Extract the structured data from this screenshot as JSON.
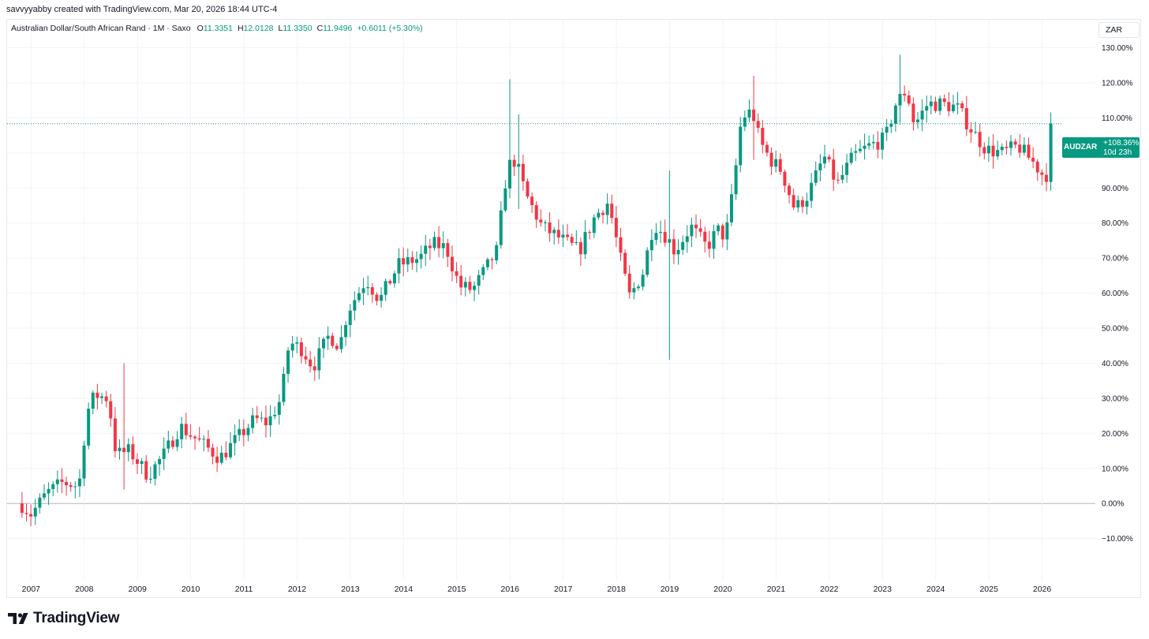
{
  "header": {
    "attribution": "savvyyabby created with TradingView.com, Mar 20, 2026 18:44 UTC-4"
  },
  "legend": {
    "symbol": "Australian Dollar/South African Rand · 1M · Saxo",
    "open_label": "O",
    "open": "11.3351",
    "high_label": "H",
    "high": "12.0128",
    "low_label": "L",
    "low": "11.3350",
    "close_label": "C",
    "close": "11.9496",
    "change": "+0.6011 (+5.30%)"
  },
  "currency_button": "ZAR",
  "price_tag": {
    "symbol": "AUDZAR",
    "percent": "+108.36%",
    "countdown": "10d 23h"
  },
  "brand": {
    "name": "TradingView"
  },
  "colors": {
    "up": "#089981",
    "down": "#f23645",
    "grid": "#f0f3fa",
    "zero_line": "#b2b5be",
    "price_line": "#089981"
  },
  "chart_data": {
    "type": "candlestick",
    "scale": "percent",
    "ylim": [
      -22,
      138
    ],
    "xlim": [
      2006.55,
      2027.0
    ],
    "y_ticks": [
      130,
      120,
      110,
      100,
      90,
      80,
      70,
      60,
      50,
      40,
      30,
      20,
      10,
      0,
      -10
    ],
    "y_tick_labels": [
      "130.00%",
      "120.00%",
      "110.00%",
      "100.00%",
      "90.00%",
      "80.00%",
      "70.00%",
      "60.00%",
      "50.00%",
      "40.00%",
      "30.00%",
      "20.00%",
      "10.00%",
      "0.00%",
      "−10.00%"
    ],
    "x_ticks": [
      2007,
      2008,
      2009,
      2010,
      2011,
      2012,
      2013,
      2014,
      2015,
      2016,
      2017,
      2018,
      2019,
      2020,
      2021,
      2022,
      2023,
      2024,
      2025,
      2026
    ],
    "x_tick_labels": [
      "2007",
      "2008",
      "2009",
      "2010",
      "2011",
      "2012",
      "2013",
      "2014",
      "2015",
      "2016",
      "2017",
      "2018",
      "2019",
      "2020",
      "2021",
      "2022",
      "2023",
      "2024",
      "2025",
      "2026"
    ],
    "last_value": 108.36,
    "grid": true,
    "anchors": [
      {
        "x": 2006.8,
        "y": 0
      },
      {
        "x": 2007.0,
        "y": -3
      },
      {
        "x": 2007.3,
        "y": 3
      },
      {
        "x": 2007.6,
        "y": 6
      },
      {
        "x": 2007.9,
        "y": 5
      },
      {
        "x": 2008.05,
        "y": 26
      },
      {
        "x": 2008.2,
        "y": 31
      },
      {
        "x": 2008.45,
        "y": 30
      },
      {
        "x": 2008.6,
        "y": 14
      },
      {
        "x": 2008.85,
        "y": 15
      },
      {
        "x": 2009.2,
        "y": 8
      },
      {
        "x": 2009.5,
        "y": 14
      },
      {
        "x": 2009.8,
        "y": 22
      },
      {
        "x": 2010.3,
        "y": 16
      },
      {
        "x": 2010.55,
        "y": 13
      },
      {
        "x": 2010.9,
        "y": 19
      },
      {
        "x": 2011.2,
        "y": 24
      },
      {
        "x": 2011.45,
        "y": 23
      },
      {
        "x": 2011.7,
        "y": 30
      },
      {
        "x": 2011.85,
        "y": 46
      },
      {
        "x": 2012.1,
        "y": 44
      },
      {
        "x": 2012.3,
        "y": 39
      },
      {
        "x": 2012.6,
        "y": 48
      },
      {
        "x": 2012.8,
        "y": 45
      },
      {
        "x": 2012.95,
        "y": 55
      },
      {
        "x": 2013.3,
        "y": 64
      },
      {
        "x": 2013.55,
        "y": 58
      },
      {
        "x": 2013.9,
        "y": 68
      },
      {
        "x": 2014.3,
        "y": 70
      },
      {
        "x": 2014.55,
        "y": 74
      },
      {
        "x": 2014.8,
        "y": 73
      },
      {
        "x": 2015.05,
        "y": 62
      },
      {
        "x": 2015.3,
        "y": 61
      },
      {
        "x": 2015.55,
        "y": 67
      },
      {
        "x": 2015.75,
        "y": 72
      },
      {
        "x": 2015.95,
        "y": 96
      },
      {
        "x": 2016.1,
        "y": 98
      },
      {
        "x": 2016.3,
        "y": 88
      },
      {
        "x": 2016.6,
        "y": 79
      },
      {
        "x": 2016.9,
        "y": 76
      },
      {
        "x": 2017.3,
        "y": 72
      },
      {
        "x": 2017.6,
        "y": 82
      },
      {
        "x": 2017.85,
        "y": 86
      },
      {
        "x": 2018.1,
        "y": 68
      },
      {
        "x": 2018.25,
        "y": 59
      },
      {
        "x": 2018.5,
        "y": 66
      },
      {
        "x": 2018.7,
        "y": 80
      },
      {
        "x": 2018.95,
        "y": 76
      },
      {
        "x": 2019.1,
        "y": 72
      },
      {
        "x": 2019.4,
        "y": 79
      },
      {
        "x": 2019.7,
        "y": 73
      },
      {
        "x": 2019.9,
        "y": 78
      },
      {
        "x": 2020.05,
        "y": 76
      },
      {
        "x": 2020.2,
        "y": 90
      },
      {
        "x": 2020.35,
        "y": 110
      },
      {
        "x": 2020.55,
        "y": 112
      },
      {
        "x": 2020.7,
        "y": 103
      },
      {
        "x": 2020.9,
        "y": 98
      },
      {
        "x": 2021.1,
        "y": 95
      },
      {
        "x": 2021.35,
        "y": 84
      },
      {
        "x": 2021.6,
        "y": 88
      },
      {
        "x": 2021.9,
        "y": 99
      },
      {
        "x": 2022.15,
        "y": 91
      },
      {
        "x": 2022.45,
        "y": 99
      },
      {
        "x": 2022.75,
        "y": 102
      },
      {
        "x": 2023.05,
        "y": 104
      },
      {
        "x": 2023.25,
        "y": 114
      },
      {
        "x": 2023.45,
        "y": 118
      },
      {
        "x": 2023.6,
        "y": 108
      },
      {
        "x": 2023.85,
        "y": 114
      },
      {
        "x": 2024.1,
        "y": 114
      },
      {
        "x": 2024.4,
        "y": 113
      },
      {
        "x": 2024.7,
        "y": 106
      },
      {
        "x": 2024.95,
        "y": 101
      },
      {
        "x": 2025.25,
        "y": 100
      },
      {
        "x": 2025.55,
        "y": 102
      },
      {
        "x": 2025.85,
        "y": 97
      },
      {
        "x": 2026.05,
        "y": 93
      },
      {
        "x": 2026.15,
        "y": 96
      },
      {
        "x": 2026.22,
        "y": 108.36
      }
    ],
    "spikes": [
      {
        "x": 2008.75,
        "high": 40,
        "low": 4
      },
      {
        "x": 2015.99,
        "high": 121,
        "low": 91
      },
      {
        "x": 2016.2,
        "high": 111,
        "low": 84
      },
      {
        "x": 2018.98,
        "high": 95,
        "low": 41
      },
      {
        "x": 2020.6,
        "high": 122,
        "low": 98
      },
      {
        "x": 2023.32,
        "high": 128,
        "low": 108
      }
    ]
  }
}
